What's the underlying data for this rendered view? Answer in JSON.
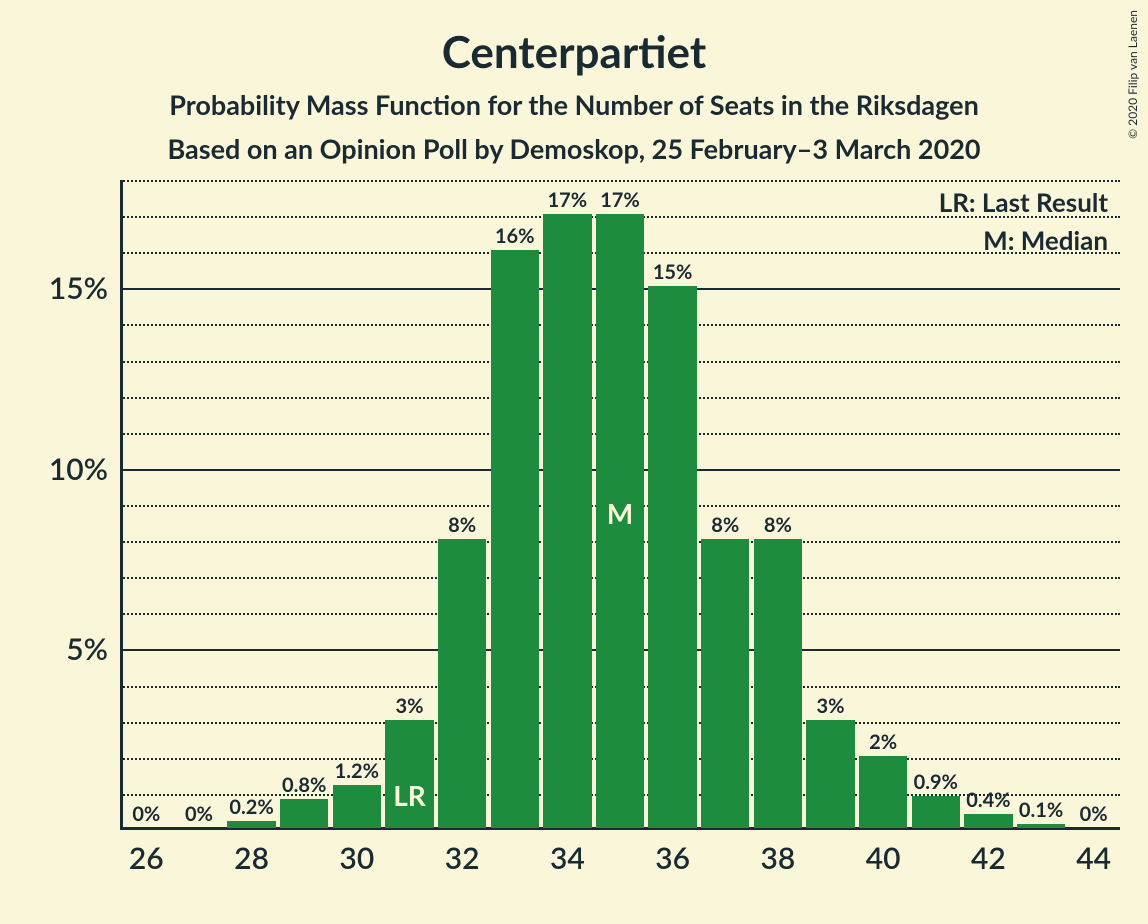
{
  "title": "Centerpartiet",
  "subtitle1": "Probability Mass Function for the Number of Seats in the Riksdagen",
  "subtitle2": "Based on an Opinion Poll by Demoskop, 25 February–3 March 2020",
  "copyright": "© 2020 Filip van Laenen",
  "legend": {
    "lr": "LR: Last Result",
    "m": "M: Median"
  },
  "chart": {
    "type": "bar",
    "background_color": "#faf6da",
    "bar_color": "#1e8c3e",
    "axis_color": "#1a2a33",
    "grid_color": "#1a2a33",
    "title_fontsize": 44,
    "subtitle_fontsize": 27,
    "tick_fontsize": 30,
    "barlabel_fontsize": 20,
    "barinner_fontsize": 28,
    "bar_width_ratio": 0.92,
    "ylim": [
      0,
      18
    ],
    "y_major_ticks": [
      5,
      10,
      15
    ],
    "y_minor_step": 1,
    "x_categories": [
      26,
      27,
      28,
      29,
      30,
      31,
      32,
      33,
      34,
      35,
      36,
      37,
      38,
      39,
      40,
      41,
      42,
      43,
      44
    ],
    "x_tick_labels": [
      26,
      28,
      30,
      32,
      34,
      36,
      38,
      40,
      42,
      44
    ],
    "values": [
      0,
      0,
      0.2,
      0.8,
      1.2,
      3,
      8,
      16,
      17,
      17,
      15,
      8,
      8,
      3,
      2,
      0.9,
      0.4,
      0.1,
      0
    ],
    "value_labels": [
      "0%",
      "0%",
      "0.2%",
      "0.8%",
      "1.2%",
      "3%",
      "8%",
      "16%",
      "17%",
      "17%",
      "15%",
      "8%",
      "8%",
      "3%",
      "2%",
      "0.9%",
      "0.4%",
      "0.1%",
      "0%"
    ],
    "annotations": {
      "LR": {
        "x": 31,
        "text": "LR"
      },
      "M": {
        "x": 35,
        "text": "M"
      }
    }
  }
}
